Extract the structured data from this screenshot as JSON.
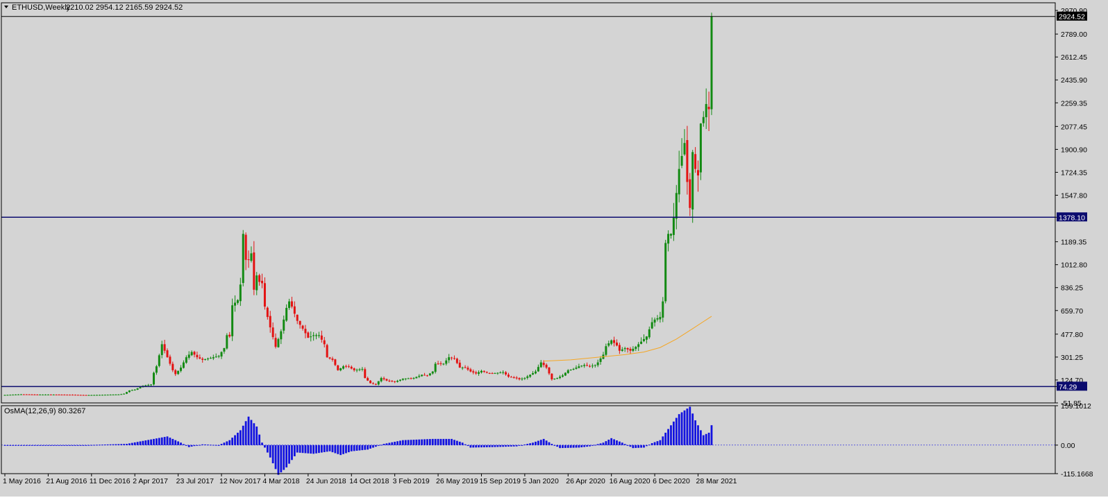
{
  "header": {
    "symbol_label": "ETHUSD,Weekly",
    "ohlc_label": "2210.02 2954.12 2165.59 2924.52"
  },
  "colors": {
    "background": "#d4d4d4",
    "bull": "#138a13",
    "bear": "#e31212",
    "hline": "#0b0b6e",
    "ma": "#f5a623",
    "osma": "#1212e0",
    "grid_frame": "#000000"
  },
  "chart_data": [
    {
      "type": "candlestick",
      "name": "ETHUSD,Weekly",
      "ohlc_header": {
        "open": 2210.02,
        "high": 2954.12,
        "low": 2165.59,
        "close": 2924.52
      },
      "ylim": [
        -51.85,
        3030
      ],
      "y_ticks": [
        "2970.90",
        "2789.00",
        "2612.45",
        "2435.90",
        "2259.35",
        "2077.45",
        "1900.90",
        "1724.35",
        "1547.80",
        "1378.10",
        "1189.35",
        "1012.80",
        "836.25",
        "659.70",
        "477.80",
        "301.25",
        "124.70",
        "74.29",
        "-51.85"
      ],
      "price_marks": [
        {
          "label": "2924.52",
          "value": 2924.52,
          "style": "current"
        },
        {
          "label": "1378.10",
          "value": 1378.1,
          "style": "level"
        },
        {
          "label": "74.29",
          "value": 74.29,
          "style": "level"
        }
      ],
      "horizontal_lines": [
        2924.52,
        1378.1,
        74.29
      ],
      "x_labels": [
        "1 May 2016",
        "21 Aug 2016",
        "11 Dec 2016",
        "2 Apr 2017",
        "23 Jul 2017",
        "12 Nov 2017",
        "4 Mar 2018",
        "24 Jun 2018",
        "14 Oct 2018",
        "3 Feb 2019",
        "26 May 2019",
        "15 Sep 2019",
        "5 Jan 2020",
        "26 Apr 2020",
        "16 Aug 2020",
        "6 Dec 2020",
        "28 Mar 2021"
      ],
      "x_label_dates": [
        "2016-05-01",
        "2016-08-21",
        "2016-12-11",
        "2017-04-02",
        "2017-07-23",
        "2017-11-12",
        "2018-03-04",
        "2018-06-24",
        "2018-10-14",
        "2019-02-03",
        "2019-05-26",
        "2019-09-15",
        "2020-01-05",
        "2020-04-26",
        "2020-08-16",
        "2020-12-06",
        "2021-03-28"
      ],
      "close_keypoints": [
        [
          "2016-05-01",
          9
        ],
        [
          "2016-06-12",
          14
        ],
        [
          "2016-07-24",
          12
        ],
        [
          "2016-09-04",
          12
        ],
        [
          "2016-10-16",
          11
        ],
        [
          "2016-11-27",
          8
        ],
        [
          "2017-01-08",
          10
        ],
        [
          "2017-02-19",
          13
        ],
        [
          "2017-03-05",
          19
        ],
        [
          "2017-03-19",
          44
        ],
        [
          "2017-04-02",
          50
        ],
        [
          "2017-04-23",
          80
        ],
        [
          "2017-05-14",
          90
        ],
        [
          "2017-05-21",
          180
        ],
        [
          "2017-05-28",
          230
        ],
        [
          "2017-06-11",
          400
        ],
        [
          "2017-06-25",
          300
        ],
        [
          "2017-07-09",
          200
        ],
        [
          "2017-07-16",
          170
        ],
        [
          "2017-07-30",
          220
        ],
        [
          "2017-08-13",
          300
        ],
        [
          "2017-08-27",
          340
        ],
        [
          "2017-09-10",
          300
        ],
        [
          "2017-09-24",
          280
        ],
        [
          "2017-10-08",
          290
        ],
        [
          "2017-10-22",
          300
        ],
        [
          "2017-11-05",
          310
        ],
        [
          "2017-11-19",
          370
        ],
        [
          "2017-11-26",
          470
        ],
        [
          "2017-12-03",
          460
        ],
        [
          "2017-12-10",
          700
        ],
        [
          "2017-12-17",
          720
        ],
        [
          "2017-12-24",
          740
        ],
        [
          "2017-12-31",
          860
        ],
        [
          "2018-01-07",
          1250
        ],
        [
          "2018-01-14",
          1050
        ],
        [
          "2018-01-21",
          1050
        ],
        [
          "2018-01-28",
          1100
        ],
        [
          "2018-02-04",
          820
        ],
        [
          "2018-02-11",
          930
        ],
        [
          "2018-02-18",
          880
        ],
        [
          "2018-02-25",
          870
        ],
        [
          "2018-03-04",
          690
        ],
        [
          "2018-03-18",
          530
        ],
        [
          "2018-04-01",
          380
        ],
        [
          "2018-04-15",
          500
        ],
        [
          "2018-04-29",
          680
        ],
        [
          "2018-05-06",
          730
        ],
        [
          "2018-05-13",
          690
        ],
        [
          "2018-05-27",
          580
        ],
        [
          "2018-06-10",
          520
        ],
        [
          "2018-06-24",
          450
        ],
        [
          "2018-07-08",
          470
        ],
        [
          "2018-07-22",
          470
        ],
        [
          "2018-08-05",
          400
        ],
        [
          "2018-08-12",
          300
        ],
        [
          "2018-08-26",
          280
        ],
        [
          "2018-09-09",
          200
        ],
        [
          "2018-09-23",
          230
        ],
        [
          "2018-10-07",
          225
        ],
        [
          "2018-10-21",
          200
        ],
        [
          "2018-11-11",
          210
        ],
        [
          "2018-11-18",
          140
        ],
        [
          "2018-12-02",
          100
        ],
        [
          "2018-12-16",
          90
        ],
        [
          "2018-12-30",
          140
        ],
        [
          "2019-01-13",
          120
        ],
        [
          "2019-02-03",
          110
        ],
        [
          "2019-02-24",
          135
        ],
        [
          "2019-03-24",
          140
        ],
        [
          "2019-04-14",
          165
        ],
        [
          "2019-04-28",
          160
        ],
        [
          "2019-05-12",
          190
        ],
        [
          "2019-05-19",
          250
        ],
        [
          "2019-06-09",
          250
        ],
        [
          "2019-06-23",
          300
        ],
        [
          "2019-07-07",
          290
        ],
        [
          "2019-07-21",
          220
        ],
        [
          "2019-08-04",
          220
        ],
        [
          "2019-08-18",
          190
        ],
        [
          "2019-09-01",
          175
        ],
        [
          "2019-09-15",
          195
        ],
        [
          "2019-09-29",
          180
        ],
        [
          "2019-10-13",
          175
        ],
        [
          "2019-10-27",
          180
        ],
        [
          "2019-11-10",
          185
        ],
        [
          "2019-11-24",
          150
        ],
        [
          "2019-12-08",
          145
        ],
        [
          "2019-12-22",
          130
        ],
        [
          "2020-01-05",
          140
        ],
        [
          "2020-01-19",
          165
        ],
        [
          "2020-02-02",
          190
        ],
        [
          "2020-02-16",
          260
        ],
        [
          "2020-03-01",
          220
        ],
        [
          "2020-03-15",
          130
        ],
        [
          "2020-03-29",
          140
        ],
        [
          "2020-04-12",
          160
        ],
        [
          "2020-04-26",
          200
        ],
        [
          "2020-05-10",
          210
        ],
        [
          "2020-05-24",
          230
        ],
        [
          "2020-06-07",
          240
        ],
        [
          "2020-06-21",
          230
        ],
        [
          "2020-07-05",
          240
        ],
        [
          "2020-07-12",
          260
        ],
        [
          "2020-07-26",
          320
        ],
        [
          "2020-08-02",
          385
        ],
        [
          "2020-08-16",
          430
        ],
        [
          "2020-08-30",
          390
        ],
        [
          "2020-09-06",
          350
        ],
        [
          "2020-09-20",
          370
        ],
        [
          "2020-10-04",
          350
        ],
        [
          "2020-10-18",
          380
        ],
        [
          "2020-11-01",
          420
        ],
        [
          "2020-11-15",
          460
        ],
        [
          "2020-11-29",
          570
        ],
        [
          "2020-12-06",
          590
        ],
        [
          "2020-12-20",
          610
        ],
        [
          "2020-12-27",
          730
        ],
        [
          "2021-01-03",
          1180
        ],
        [
          "2021-01-10",
          1250
        ],
        [
          "2021-01-17",
          1250
        ],
        [
          "2021-01-24",
          1380
        ],
        [
          "2021-02-07",
          1750
        ],
        [
          "2021-02-14",
          1850
        ],
        [
          "2021-02-21",
          1950
        ],
        [
          "2021-02-28",
          1650
        ],
        [
          "2021-03-07",
          1450
        ],
        [
          "2021-03-14",
          1880
        ],
        [
          "2021-03-21",
          1750
        ],
        [
          "2021-03-28",
          1700
        ],
        [
          "2021-04-04",
          2100
        ],
        [
          "2021-04-11",
          2150
        ],
        [
          "2021-04-18",
          2250
        ],
        [
          "2021-04-25",
          2210
        ],
        [
          "2021-05-02",
          2924.52
        ]
      ],
      "moving_average": {
        "points": [
          [
            "2020-02-23",
            270
          ],
          [
            "2020-05-03",
            280
          ],
          [
            "2020-07-12",
            300
          ],
          [
            "2020-09-20",
            320
          ],
          [
            "2020-11-08",
            340
          ],
          [
            "2020-12-20",
            375
          ],
          [
            "2021-01-31",
            440
          ],
          [
            "2021-03-14",
            520
          ],
          [
            "2021-05-02",
            615
          ]
        ]
      }
    },
    {
      "type": "bar",
      "name": "OsMA",
      "label": "OsMA(12,26,9) 80.3267",
      "ylim": [
        -115.1668,
        159.1012
      ],
      "y_ticks": [
        "159.1012",
        "0.00",
        "-115.1668"
      ],
      "keypoints": [
        [
          "2016-05-01",
          0
        ],
        [
          "2016-11-27",
          0
        ],
        [
          "2017-03-12",
          5
        ],
        [
          "2017-05-21",
          25
        ],
        [
          "2017-06-25",
          35
        ],
        [
          "2017-07-30",
          10
        ],
        [
          "2017-08-20",
          -8
        ],
        [
          "2017-09-24",
          3
        ],
        [
          "2017-11-05",
          0
        ],
        [
          "2017-12-03",
          20
        ],
        [
          "2017-12-31",
          60
        ],
        [
          "2018-01-21",
          115
        ],
        [
          "2018-02-11",
          75
        ],
        [
          "2018-02-25",
          10
        ],
        [
          "2018-03-18",
          -50
        ],
        [
          "2018-04-08",
          -120
        ],
        [
          "2018-04-29",
          -90
        ],
        [
          "2018-05-27",
          -30
        ],
        [
          "2018-07-08",
          -35
        ],
        [
          "2018-08-19",
          -25
        ],
        [
          "2018-09-16",
          -40
        ],
        [
          "2018-10-14",
          -25
        ],
        [
          "2018-11-25",
          -18
        ],
        [
          "2019-01-06",
          5
        ],
        [
          "2019-02-24",
          20
        ],
        [
          "2019-05-12",
          25
        ],
        [
          "2019-06-30",
          25
        ],
        [
          "2019-07-28",
          10
        ],
        [
          "2019-08-18",
          -10
        ],
        [
          "2019-10-13",
          -8
        ],
        [
          "2019-12-15",
          -5
        ],
        [
          "2020-01-26",
          10
        ],
        [
          "2020-02-23",
          25
        ],
        [
          "2020-03-15",
          5
        ],
        [
          "2020-04-05",
          -12
        ],
        [
          "2020-05-24",
          -10
        ],
        [
          "2020-06-21",
          -5
        ],
        [
          "2020-07-26",
          10
        ],
        [
          "2020-08-16",
          28
        ],
        [
          "2020-09-13",
          10
        ],
        [
          "2020-10-11",
          -12
        ],
        [
          "2020-11-08",
          -10
        ],
        [
          "2020-11-29",
          8
        ],
        [
          "2020-12-20",
          20
        ],
        [
          "2021-01-17",
          80
        ],
        [
          "2021-02-07",
          125
        ],
        [
          "2021-03-07",
          155
        ],
        [
          "2021-03-21",
          100
        ],
        [
          "2021-04-11",
          40
        ],
        [
          "2021-04-25",
          50
        ],
        [
          "2021-05-02",
          80.3267
        ]
      ]
    }
  ]
}
